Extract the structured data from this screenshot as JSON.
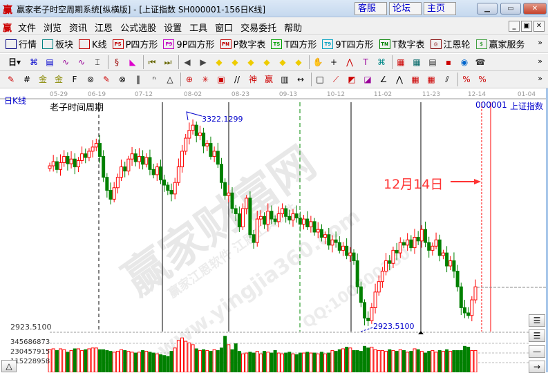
{
  "window": {
    "logo": "赢",
    "title": "赢家老子时空周期系统[纵横版] - [上证指数  SH000001-156日K线]",
    "links": [
      "客服",
      "论坛",
      "主页"
    ],
    "controls": [
      "minimize",
      "restore",
      "close"
    ]
  },
  "menu": {
    "logo": "赢",
    "items": [
      "文件",
      "浏览",
      "资讯",
      "江恩",
      "公式选股",
      "设置",
      "工具",
      "窗口",
      "交易委托",
      "帮助"
    ]
  },
  "toolbar1": {
    "items": [
      {
        "icon": "table-icon",
        "badge": "",
        "label": "行情",
        "color": "#000080"
      },
      {
        "icon": "blocks-icon",
        "badge": "",
        "label": "板块",
        "color": "#008080"
      },
      {
        "icon": "candles-icon",
        "badge": "",
        "label": "K线",
        "color": "#c00000"
      },
      {
        "icon": "ps-icon",
        "badge": "PS",
        "label": "P四方形",
        "color": "#c00000"
      },
      {
        "icon": "p9-icon",
        "badge": "P9",
        "label": "9P四方形",
        "color": "#c000c0"
      },
      {
        "icon": "pn-icon",
        "badge": "PN",
        "label": "P数字表",
        "color": "#c00000"
      },
      {
        "icon": "ts-icon",
        "badge": "TS",
        "label": "T四方形",
        "color": "#00a000"
      },
      {
        "icon": "t9-icon",
        "badge": "T9",
        "label": "9T四方形",
        "color": "#00a0c0"
      },
      {
        "icon": "tn-icon",
        "badge": "TN",
        "label": "T数字表",
        "color": "#008000"
      },
      {
        "icon": "gann-wheel-icon",
        "badge": "◎",
        "label": "江恩轮",
        "color": "#800000"
      },
      {
        "icon": "dollar-icon",
        "badge": "$",
        "label": "赢家服务",
        "color": "#40a040"
      }
    ],
    "more": "»"
  },
  "toolbar2": {
    "period": "日",
    "more": "»"
  },
  "toolbar3": {
    "more": "»"
  },
  "chart_header": {
    "period_label": "日K线",
    "study_name": "老子时间周期",
    "code": "000001",
    "name": "上证指数"
  },
  "watermark": {
    "main": "赢家财富网",
    "url": "www.yingjia360.com",
    "line": "赢家江恩软件 江恩工具软件",
    "qq": "QQ:100800360"
  },
  "colors": {
    "up": "#ff0000",
    "down": "#008000",
    "annotation": "#ff3333",
    "label": "#0000ff"
  },
  "chart_data": {
    "type": "candlestick",
    "x_ticks": [
      "05-29",
      "06-19",
      "07-12",
      "08-02",
      "08-23",
      "09-13",
      "10-12",
      "11-02",
      "11-23",
      "12-14",
      "01-04"
    ],
    "ylim": [
      2923.51,
      3322.1299
    ],
    "high_label": "3322.1299",
    "low_label": "2923.5100",
    "axis_low_label": "2923.5100",
    "annotation": "12月14日",
    "close": [
      3232,
      3240,
      3225,
      3238,
      3250,
      3236,
      3245,
      3230,
      3242,
      3255,
      3248,
      3260,
      3268,
      3275,
      3250,
      3210,
      3185,
      3168,
      3190,
      3210,
      3230,
      3222,
      3245,
      3255,
      3240,
      3250,
      3235,
      3248,
      3225,
      3215,
      3230,
      3205,
      3195,
      3185,
      3178,
      3200,
      3230,
      3260,
      3285,
      3300,
      3310,
      3290,
      3295,
      3270,
      3275,
      3250,
      3260,
      3235,
      3200,
      3175,
      3180,
      3150,
      3140,
      3115,
      3150,
      3170,
      3100,
      3085,
      3130,
      3135,
      3120,
      3145,
      3130,
      3125,
      3140,
      3150,
      3135,
      3128,
      3140,
      3132,
      3120,
      3130,
      3115,
      3125,
      3105,
      3110,
      3095,
      3100,
      3080,
      3090,
      3085,
      3070,
      3078,
      3060,
      3065,
      3050,
      3000,
      2970,
      2940,
      2935,
      2960,
      2990,
      3010,
      3030,
      3050,
      3045,
      3070,
      3065,
      3085,
      3080,
      3090,
      3075,
      3095,
      3088,
      3110,
      3085,
      3070,
      3078,
      3090,
      3060,
      3065,
      3040,
      3050,
      3030,
      3000,
      2960,
      2950,
      2945,
      2975,
      3000
    ],
    "volume_ticks": [
      "345686873",
      "230457915",
      "115228958"
    ],
    "volume": [
      270000000.0,
      280000000.0,
      260000000.0,
      280000000.0,
      270000000.0,
      240000000.0,
      260000000.0,
      280000000.0,
      280000000.0,
      260000000.0,
      270000000.0,
      280000000.0,
      290000000.0,
      290000000.0,
      270000000.0,
      270000000.0,
      260000000.0,
      250000000.0,
      240000000.0,
      250000000.0,
      270000000.0,
      260000000.0,
      250000000.0,
      240000000.0,
      230000000.0,
      240000000.0,
      260000000.0,
      250000000.0,
      240000000.0,
      230000000.0,
      220000000.0,
      210000000.0,
      200000000.0,
      190000000.0,
      250000000.0,
      290000000.0,
      380000000.0,
      410000000.0,
      370000000.0,
      350000000.0,
      330000000.0,
      280000000.0,
      260000000.0,
      270000000.0,
      260000000.0,
      250000000.0,
      270000000.0,
      260000000.0,
      290000000.0,
      430000000.0,
      330000000.0,
      270000000.0,
      340000000.0,
      250000000.0,
      220000000.0,
      230000000.0,
      240000000.0,
      230000000.0,
      250000000.0,
      220000000.0,
      250000000.0,
      240000000.0,
      230000000.0,
      260000000.0,
      230000000.0,
      220000000.0,
      230000000.0,
      240000000.0,
      220000000.0,
      210000000.0,
      230000000.0,
      230000000.0,
      240000000.0,
      230000000.0,
      230000000.0,
      220000000.0,
      240000000.0,
      220000000.0,
      230000000.0,
      260000000.0,
      250000000.0,
      270000000.0,
      280000000.0,
      300000000.0,
      290000000.0,
      260000000.0,
      260000000.0,
      250000000.0,
      310000000.0,
      290000000.0,
      300000000.0,
      270000000.0,
      260000000.0,
      260000000.0,
      250000000.0,
      270000000.0,
      260000000.0,
      250000000.0,
      270000000.0,
      260000000.0,
      240000000.0,
      250000000.0,
      280000000.0,
      270000000.0,
      250000000.0,
      230000000.0,
      250000000.0,
      260000000.0,
      240000000.0,
      260000000.0,
      250000000.0,
      270000000.0,
      250000000.0,
      260000000.0,
      260000000.0,
      260000000.0,
      310000000.0,
      300000000.0,
      260000000.0,
      260000000.0
    ]
  }
}
